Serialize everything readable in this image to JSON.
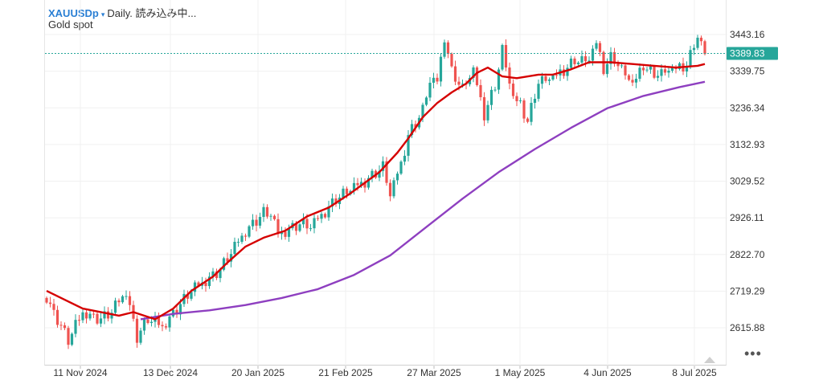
{
  "header": {
    "symbol": "XAUUSDp",
    "caret": "▾",
    "status": "Daily. 読み込み中...",
    "subtitle": "Gold spot"
  },
  "more_menu_label": "•••",
  "colors": {
    "up": "#26a69a",
    "down": "#ef5350",
    "ma_short": "#d50000",
    "ma_long": "#8e3fc0",
    "price_line": "#26a69a",
    "grid": "#f0f0f0"
  },
  "chart_data": {
    "type": "candlestick",
    "symbol": "XAUUSDp",
    "timeframe": "Daily",
    "current_price": 3389.83,
    "current_price_label": "3389.83",
    "y_ticks": [
      2615.88,
      2719.29,
      2822.7,
      2926.11,
      3029.52,
      3132.93,
      3236.34,
      3339.75,
      3443.16
    ],
    "y_tick_labels": [
      "2615.88",
      "2719.29",
      "2822.70",
      "2926.11",
      "3029.52",
      "3132.93",
      "3236.34",
      "3339.75",
      "3443.16"
    ],
    "x_labels": [
      "11 Nov 2024",
      "13 Dec 2024",
      "20 Jan 2025",
      "21 Feb 2025",
      "27 Mar 2025",
      "1 May 2025",
      "4 Jun 2025",
      "8 Jul 2025"
    ],
    "close_path": [
      [
        0,
        2700
      ],
      [
        6,
        2580
      ],
      [
        10,
        2660
      ],
      [
        15,
        2640
      ],
      [
        18,
        2660
      ],
      [
        22,
        2720
      ],
      [
        25,
        2590
      ],
      [
        28,
        2640
      ],
      [
        32,
        2620
      ],
      [
        40,
        2720
      ],
      [
        48,
        2780
      ],
      [
        55,
        2890
      ],
      [
        60,
        2940
      ],
      [
        62,
        2935
      ],
      [
        64,
        2880
      ],
      [
        70,
        2910
      ],
      [
        73,
        2900
      ],
      [
        80,
        2980
      ],
      [
        88,
        3030
      ],
      [
        93,
        3070
      ],
      [
        95,
        2990
      ],
      [
        98,
        3080
      ],
      [
        100,
        3160
      ],
      [
        104,
        3230
      ],
      [
        106,
        3310
      ],
      [
        108,
        3310
      ],
      [
        110,
        3440
      ],
      [
        112,
        3340
      ],
      [
        115,
        3290
      ],
      [
        118,
        3340
      ],
      [
        121,
        3220
      ],
      [
        124,
        3300
      ],
      [
        126,
        3400
      ],
      [
        129,
        3260
      ],
      [
        131,
        3250
      ],
      [
        133,
        3200
      ],
      [
        136,
        3310
      ],
      [
        140,
        3320
      ],
      [
        146,
        3370
      ],
      [
        150,
        3370
      ],
      [
        152,
        3420
      ],
      [
        154,
        3350
      ],
      [
        156,
        3380
      ],
      [
        158,
        3360
      ],
      [
        162,
        3300
      ],
      [
        165,
        3360
      ],
      [
        168,
        3330
      ],
      [
        172,
        3340
      ],
      [
        177,
        3360
      ],
      [
        180,
        3440
      ],
      [
        182,
        3390
      ]
    ],
    "ma_short": [
      [
        0,
        2720
      ],
      [
        10,
        2670
      ],
      [
        20,
        2650
      ],
      [
        24,
        2660
      ],
      [
        30,
        2640
      ],
      [
        35,
        2670
      ],
      [
        40,
        2720
      ],
      [
        46,
        2760
      ],
      [
        50,
        2800
      ],
      [
        55,
        2845
      ],
      [
        60,
        2870
      ],
      [
        66,
        2890
      ],
      [
        72,
        2930
      ],
      [
        78,
        2955
      ],
      [
        84,
        2995
      ],
      [
        88,
        3025
      ],
      [
        92,
        3055
      ],
      [
        97,
        3110
      ],
      [
        100,
        3150
      ],
      [
        104,
        3210
      ],
      [
        108,
        3250
      ],
      [
        112,
        3280
      ],
      [
        116,
        3305
      ],
      [
        119,
        3335
      ],
      [
        122,
        3350
      ],
      [
        126,
        3325
      ],
      [
        130,
        3320
      ],
      [
        136,
        3330
      ],
      [
        140,
        3330
      ],
      [
        145,
        3345
      ],
      [
        150,
        3365
      ],
      [
        156,
        3365
      ],
      [
        162,
        3360
      ],
      [
        168,
        3355
      ],
      [
        174,
        3350
      ],
      [
        180,
        3355
      ],
      [
        182,
        3360
      ]
    ],
    "ma_long": [
      [
        26,
        2640
      ],
      [
        35,
        2655
      ],
      [
        45,
        2665
      ],
      [
        55,
        2680
      ],
      [
        65,
        2700
      ],
      [
        75,
        2725
      ],
      [
        85,
        2765
      ],
      [
        95,
        2820
      ],
      [
        105,
        2900
      ],
      [
        115,
        2980
      ],
      [
        125,
        3055
      ],
      [
        135,
        3120
      ],
      [
        145,
        3180
      ],
      [
        155,
        3235
      ],
      [
        165,
        3270
      ],
      [
        175,
        3295
      ],
      [
        182,
        3310
      ]
    ]
  }
}
